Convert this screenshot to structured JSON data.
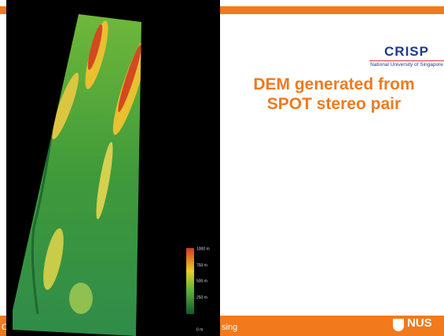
{
  "header": {
    "logo": "CRISP",
    "logo_subtitle": "National University of Singapore"
  },
  "slide": {
    "title_lines": [
      "DEM generated from",
      "SPOT stereo pair"
    ]
  },
  "image": {
    "colorbar_labels": [
      "1000 m",
      "750 m",
      "500 m",
      "250 m",
      "0 m"
    ]
  },
  "footer": {
    "left_text": "C",
    "middle_text": "sing",
    "logo": "NUS"
  }
}
